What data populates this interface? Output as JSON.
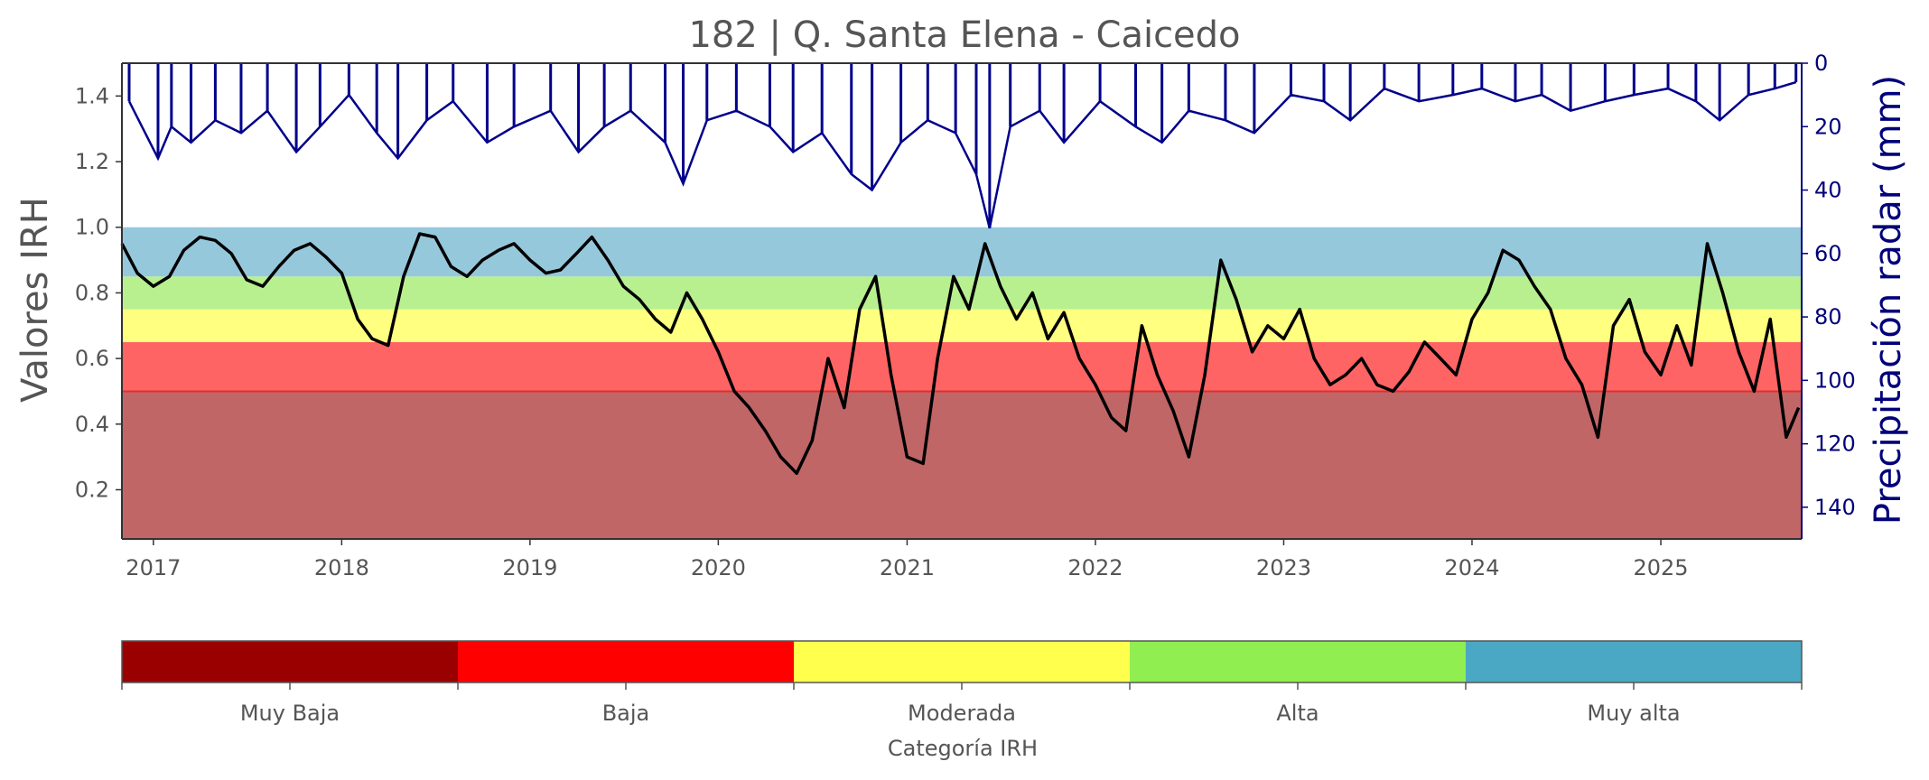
{
  "chart_data": {
    "type": "line",
    "title": "182 | Q. Santa Elena - Caicedo",
    "ylabel": "Valores IRH",
    "ylabel_right": "Precipitación radar (mm)",
    "xlim": [
      "2016-11-01",
      "2025-10-01"
    ],
    "ylim": [
      0.05,
      1.5
    ],
    "ylim_right": [
      150,
      0
    ],
    "x_ticks": [
      "2017",
      "2018",
      "2019",
      "2020",
      "2021",
      "2022",
      "2023",
      "2024",
      "2025"
    ],
    "y_ticks": [
      "0.2",
      "0.4",
      "0.6",
      "0.8",
      "1.0",
      "1.2",
      "1.4"
    ],
    "y_ticks_right": [
      "0",
      "20",
      "40",
      "60",
      "80",
      "100",
      "120",
      "140"
    ],
    "bands": [
      {
        "category": "Muy Baja",
        "from": 0.05,
        "to": 0.5,
        "color": "#c06666"
      },
      {
        "category": "Baja",
        "from": 0.5,
        "to": 0.65,
        "color": "#ff6464"
      },
      {
        "category": "Moderada",
        "from": 0.65,
        "to": 0.75,
        "color": "#ffff80"
      },
      {
        "category": "Alta",
        "from": 0.75,
        "to": 0.85,
        "color": "#b8f090"
      },
      {
        "category": "Muy alta",
        "from": 0.85,
        "to": 1.0,
        "color": "#96c8dc"
      }
    ],
    "reference_line": {
      "y": 0.5,
      "color": "#e03030"
    },
    "series": [
      {
        "name": "IRH",
        "color": "#000000",
        "points": [
          [
            "2016-11-01",
            0.95
          ],
          [
            "2016-12-01",
            0.86
          ],
          [
            "2017-01-01",
            0.82
          ],
          [
            "2017-02-01",
            0.85
          ],
          [
            "2017-03-01",
            0.93
          ],
          [
            "2017-04-01",
            0.97
          ],
          [
            "2017-05-01",
            0.96
          ],
          [
            "2017-06-01",
            0.92
          ],
          [
            "2017-07-01",
            0.84
          ],
          [
            "2017-08-01",
            0.82
          ],
          [
            "2017-09-01",
            0.88
          ],
          [
            "2017-10-01",
            0.93
          ],
          [
            "2017-11-01",
            0.95
          ],
          [
            "2017-12-01",
            0.91
          ],
          [
            "2018-01-01",
            0.86
          ],
          [
            "2018-02-01",
            0.72
          ],
          [
            "2018-03-01",
            0.66
          ],
          [
            "2018-04-01",
            0.64
          ],
          [
            "2018-05-01",
            0.85
          ],
          [
            "2018-06-01",
            0.98
          ],
          [
            "2018-07-01",
            0.97
          ],
          [
            "2018-08-01",
            0.88
          ],
          [
            "2018-09-01",
            0.85
          ],
          [
            "2018-10-01",
            0.9
          ],
          [
            "2018-11-01",
            0.93
          ],
          [
            "2018-12-01",
            0.95
          ],
          [
            "2019-01-01",
            0.9
          ],
          [
            "2019-02-01",
            0.86
          ],
          [
            "2019-03-01",
            0.87
          ],
          [
            "2019-04-01",
            0.92
          ],
          [
            "2019-05-01",
            0.97
          ],
          [
            "2019-06-01",
            0.9
          ],
          [
            "2019-07-01",
            0.82
          ],
          [
            "2019-08-01",
            0.78
          ],
          [
            "2019-09-01",
            0.72
          ],
          [
            "2019-10-01",
            0.68
          ],
          [
            "2019-11-01",
            0.8
          ],
          [
            "2019-12-01",
            0.72
          ],
          [
            "2020-01-01",
            0.62
          ],
          [
            "2020-02-01",
            0.5
          ],
          [
            "2020-03-01",
            0.45
          ],
          [
            "2020-04-01",
            0.38
          ],
          [
            "2020-05-01",
            0.3
          ],
          [
            "2020-06-01",
            0.25
          ],
          [
            "2020-07-01",
            0.35
          ],
          [
            "2020-08-01",
            0.6
          ],
          [
            "2020-09-01",
            0.45
          ],
          [
            "2020-10-01",
            0.75
          ],
          [
            "2020-11-01",
            0.85
          ],
          [
            "2020-12-01",
            0.55
          ],
          [
            "2021-01-01",
            0.3
          ],
          [
            "2021-02-01",
            0.28
          ],
          [
            "2021-03-01",
            0.6
          ],
          [
            "2021-04-01",
            0.85
          ],
          [
            "2021-05-01",
            0.75
          ],
          [
            "2021-06-01",
            0.95
          ],
          [
            "2021-07-01",
            0.82
          ],
          [
            "2021-08-01",
            0.72
          ],
          [
            "2021-09-01",
            0.8
          ],
          [
            "2021-10-01",
            0.66
          ],
          [
            "2021-11-01",
            0.74
          ],
          [
            "2021-12-01",
            0.6
          ],
          [
            "2022-01-01",
            0.52
          ],
          [
            "2022-02-01",
            0.42
          ],
          [
            "2022-03-01",
            0.38
          ],
          [
            "2022-04-01",
            0.7
          ],
          [
            "2022-05-01",
            0.55
          ],
          [
            "2022-06-01",
            0.44
          ],
          [
            "2022-07-01",
            0.3
          ],
          [
            "2022-08-01",
            0.55
          ],
          [
            "2022-09-01",
            0.9
          ],
          [
            "2022-10-01",
            0.78
          ],
          [
            "2022-11-01",
            0.62
          ],
          [
            "2022-12-01",
            0.7
          ],
          [
            "2023-01-01",
            0.66
          ],
          [
            "2023-02-01",
            0.75
          ],
          [
            "2023-03-01",
            0.6
          ],
          [
            "2023-04-01",
            0.52
          ],
          [
            "2023-05-01",
            0.55
          ],
          [
            "2023-06-01",
            0.6
          ],
          [
            "2023-07-01",
            0.52
          ],
          [
            "2023-08-01",
            0.5
          ],
          [
            "2023-09-01",
            0.56
          ],
          [
            "2023-10-01",
            0.65
          ],
          [
            "2023-11-01",
            0.6
          ],
          [
            "2023-12-01",
            0.55
          ],
          [
            "2024-01-01",
            0.72
          ],
          [
            "2024-02-01",
            0.8
          ],
          [
            "2024-03-01",
            0.93
          ],
          [
            "2024-04-01",
            0.9
          ],
          [
            "2024-05-01",
            0.82
          ],
          [
            "2024-06-01",
            0.75
          ],
          [
            "2024-07-01",
            0.6
          ],
          [
            "2024-08-01",
            0.52
          ],
          [
            "2024-09-01",
            0.36
          ],
          [
            "2024-10-01",
            0.7
          ],
          [
            "2024-11-01",
            0.78
          ],
          [
            "2024-12-01",
            0.62
          ],
          [
            "2025-01-01",
            0.55
          ],
          [
            "2025-02-01",
            0.7
          ],
          [
            "2025-03-01",
            0.58
          ],
          [
            "2025-04-01",
            0.95
          ],
          [
            "2025-05-01",
            0.8
          ],
          [
            "2025-06-01",
            0.62
          ],
          [
            "2025-07-01",
            0.5
          ],
          [
            "2025-08-01",
            0.72
          ],
          [
            "2025-09-01",
            0.36
          ],
          [
            "2025-09-25",
            0.45
          ]
        ]
      },
      {
        "name": "Precipitación radar",
        "color": "#00008b",
        "axis": "right",
        "points": [
          [
            "2016-11-15",
            12
          ],
          [
            "2017-01-10",
            30
          ],
          [
            "2017-02-05",
            20
          ],
          [
            "2017-03-15",
            25
          ],
          [
            "2017-05-01",
            18
          ],
          [
            "2017-06-20",
            22
          ],
          [
            "2017-08-10",
            15
          ],
          [
            "2017-10-05",
            28
          ],
          [
            "2017-11-20",
            20
          ],
          [
            "2018-01-15",
            10
          ],
          [
            "2018-03-10",
            22
          ],
          [
            "2018-04-20",
            30
          ],
          [
            "2018-06-15",
            18
          ],
          [
            "2018-08-05",
            12
          ],
          [
            "2018-10-10",
            25
          ],
          [
            "2018-12-01",
            20
          ],
          [
            "2019-02-10",
            15
          ],
          [
            "2019-04-05",
            28
          ],
          [
            "2019-05-25",
            20
          ],
          [
            "2019-07-15",
            15
          ],
          [
            "2019-09-20",
            25
          ],
          [
            "2019-10-25",
            38
          ],
          [
            "2019-12-10",
            18
          ],
          [
            "2020-02-05",
            15
          ],
          [
            "2020-04-10",
            20
          ],
          [
            "2020-05-25",
            28
          ],
          [
            "2020-07-20",
            22
          ],
          [
            "2020-09-15",
            35
          ],
          [
            "2020-10-25",
            40
          ],
          [
            "2020-12-20",
            25
          ],
          [
            "2021-02-10",
            18
          ],
          [
            "2021-04-05",
            22
          ],
          [
            "2021-05-15",
            35
          ],
          [
            "2021-06-10",
            52
          ],
          [
            "2021-07-20",
            20
          ],
          [
            "2021-09-15",
            15
          ],
          [
            "2021-11-01",
            25
          ],
          [
            "2022-01-10",
            12
          ],
          [
            "2022-03-20",
            20
          ],
          [
            "2022-05-10",
            25
          ],
          [
            "2022-07-01",
            15
          ],
          [
            "2022-09-10",
            18
          ],
          [
            "2022-11-05",
            22
          ],
          [
            "2023-01-15",
            10
          ],
          [
            "2023-03-20",
            12
          ],
          [
            "2023-05-10",
            18
          ],
          [
            "2023-07-15",
            8
          ],
          [
            "2023-09-20",
            12
          ],
          [
            "2023-11-25",
            10
          ],
          [
            "2024-01-20",
            8
          ],
          [
            "2024-03-25",
            12
          ],
          [
            "2024-05-15",
            10
          ],
          [
            "2024-07-10",
            15
          ],
          [
            "2024-09-15",
            12
          ],
          [
            "2024-11-10",
            10
          ],
          [
            "2025-01-15",
            8
          ],
          [
            "2025-03-10",
            12
          ],
          [
            "2025-04-25",
            18
          ],
          [
            "2025-06-20",
            10
          ],
          [
            "2025-08-10",
            8
          ],
          [
            "2025-09-20",
            6
          ]
        ]
      }
    ],
    "colorbar": {
      "label": "Categoría IRH",
      "categories": [
        "Muy Baja",
        "Baja",
        "Moderada",
        "Alta",
        "Muy alta"
      ],
      "colors": [
        "#9b0000",
        "#ff0000",
        "#ffff4d",
        "#90ee50",
        "#4aa8c4"
      ]
    }
  }
}
